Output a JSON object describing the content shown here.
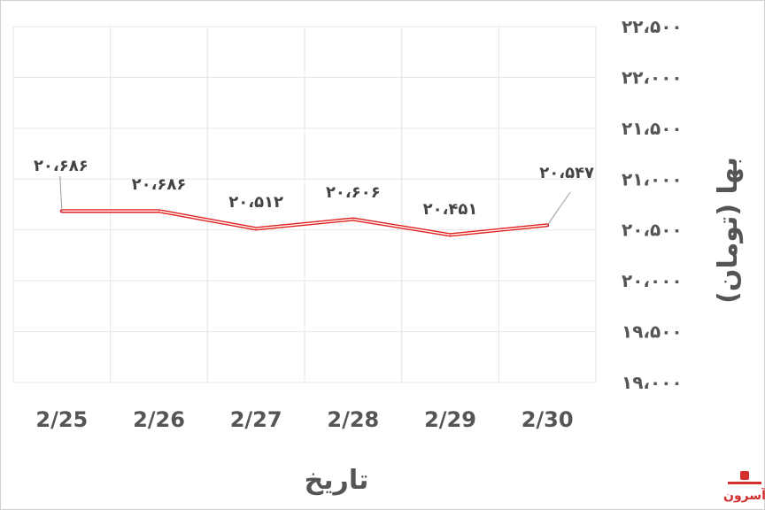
{
  "chart_data": {
    "type": "line",
    "categories": [
      "2/25",
      "2/26",
      "2/27",
      "2/28",
      "2/29",
      "2/30"
    ],
    "values": [
      20686,
      20686,
      20512,
      20606,
      20451,
      20547
    ],
    "data_labels": [
      "۲۰،۶۸۶",
      "۲۰،۶۸۶",
      "۲۰،۵۱۲",
      "۲۰،۶۰۶",
      "۲۰،۴۵۱",
      "۲۰،۵۴۷"
    ],
    "ylim": [
      19000,
      22500
    ],
    "yticks": [
      19000,
      19500,
      20000,
      20500,
      21000,
      21500,
      22000,
      22500
    ],
    "ytick_labels": [
      "۱۹،۰۰۰",
      "۱۹،۵۰۰",
      "۲۰،۰۰۰",
      "۲۰،۵۰۰",
      "۲۱،۰۰۰",
      "۲۱،۵۰۰",
      "۲۲،۰۰۰",
      "۲۲،۵۰۰"
    ],
    "xlabel": "تاریخ",
    "ylabel": "بها (تومان)",
    "grid": true,
    "y_axis_side": "right",
    "line_color": "#e0201e"
  },
  "logo": {
    "text": "آسرون",
    "color": "#d32f2f"
  }
}
